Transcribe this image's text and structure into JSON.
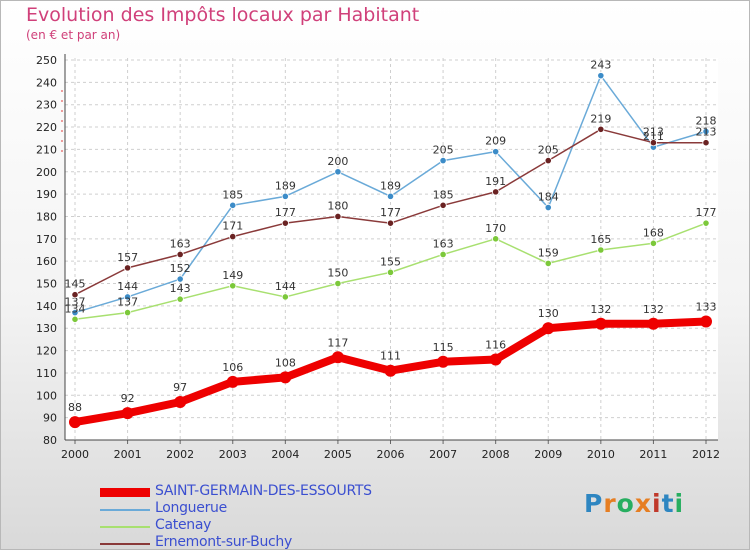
{
  "title": "Evolution des Impôts locaux par Habitant",
  "subtitle": "(en € et par an)",
  "logo": {
    "text": "Proxiti",
    "colors": [
      "#2e86c1",
      "#e67e22",
      "#27ae60",
      "#e67e22",
      "#c0392b",
      "#2e86c1",
      "#27ae60"
    ]
  },
  "chart_data": {
    "type": "line",
    "x": [
      "2000",
      "2001",
      "2002",
      "2003",
      "2004",
      "2005",
      "2006",
      "2007",
      "2008",
      "2009",
      "2010",
      "2011",
      "2012"
    ],
    "ylim": [
      80,
      250
    ],
    "yticks": [
      80,
      90,
      100,
      110,
      120,
      130,
      140,
      150,
      160,
      170,
      180,
      190,
      200,
      210,
      220,
      230,
      240,
      250
    ],
    "grid": true,
    "legend_position": "bottom-left",
    "series": [
      {
        "name": "SAINT-GERMAIN-DES-ESSOURTS",
        "color": "#ee0000",
        "emphasis": true,
        "values": [
          88,
          92,
          97,
          106,
          108,
          117,
          111,
          115,
          116,
          130,
          132,
          132,
          133
        ]
      },
      {
        "name": "Longuerue",
        "color": "#6aaad8",
        "marker": "#3c8cc8",
        "values": [
          137,
          144,
          152,
          185,
          189,
          200,
          189,
          205,
          209,
          184,
          243,
          211,
          218
        ]
      },
      {
        "name": "Catenay",
        "color": "#a8e070",
        "marker": "#7cc83a",
        "values": [
          134,
          137,
          143,
          149,
          144,
          150,
          155,
          163,
          170,
          159,
          165,
          168,
          177
        ]
      },
      {
        "name": "Ernemont-sur-Buchy",
        "color": "#8a3a3a",
        "marker": "#6a2222",
        "values": [
          145,
          157,
          163,
          171,
          177,
          180,
          177,
          185,
          191,
          205,
          219,
          213,
          213
        ]
      }
    ]
  }
}
